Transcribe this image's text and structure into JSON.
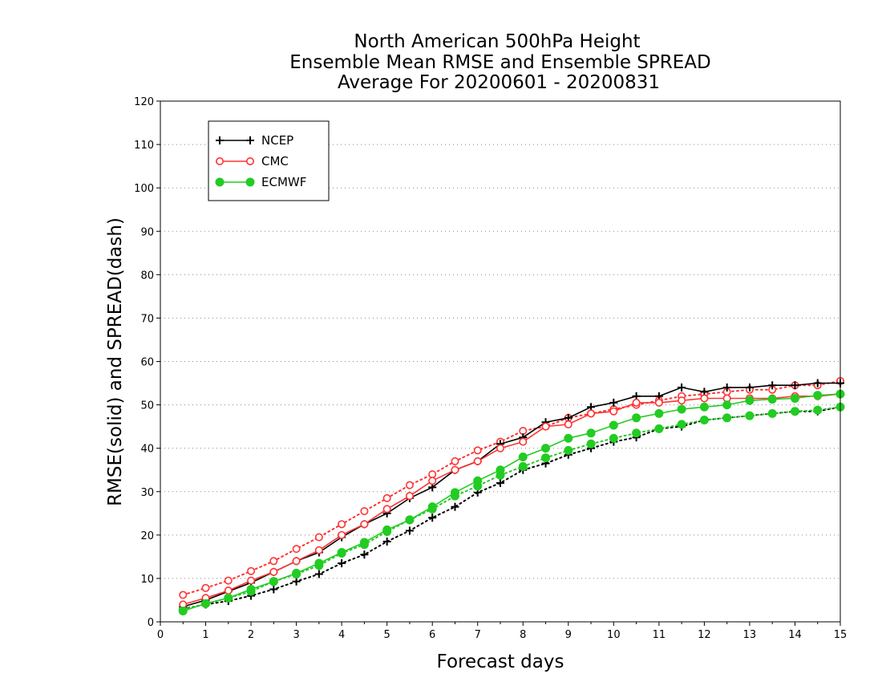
{
  "chart_data": {
    "type": "line",
    "title_lines": [
      "North American 500hPa Height",
      "Ensemble Mean RMSE and Ensemble SPREAD",
      "Average For 20200601 - 20200831"
    ],
    "xlabel": "Forecast days",
    "ylabel": "RMSE(solid) and SPREAD(dash)",
    "xlim": [
      0,
      15
    ],
    "ylim": [
      0,
      120
    ],
    "xticks": [
      "0",
      "1",
      "2",
      "3",
      "4",
      "5",
      "6",
      "7",
      "8",
      "9",
      "10",
      "11",
      "12",
      "13",
      "14",
      "15"
    ],
    "yticks": [
      "0",
      "10",
      "20",
      "30",
      "40",
      "50",
      "60",
      "70",
      "80",
      "90",
      "100",
      "110",
      "120"
    ],
    "grid": true,
    "legend_position": "top-left",
    "x": [
      0.5,
      1,
      1.5,
      2,
      2.5,
      3,
      3.5,
      4,
      4.5,
      5,
      5.5,
      6,
      6.5,
      7,
      7.5,
      8,
      8.5,
      9,
      9.5,
      10,
      10.5,
      11,
      11.5,
      12,
      12.5,
      13,
      13.5,
      14,
      14.5,
      15
    ],
    "series": [
      {
        "name": "NCEP",
        "color": "#000000",
        "marker": "plus",
        "rmse": [
          3.5,
          5.0,
          7.0,
          9.0,
          11.5,
          14.0,
          16.0,
          19.5,
          22.5,
          25.0,
          28.5,
          31.0,
          35.0,
          37.0,
          41.0,
          42.5,
          46.0,
          47.0,
          49.5,
          50.5,
          52.0,
          52.0,
          54.0,
          53.0,
          54.0,
          54.0,
          54.5,
          54.5,
          55.0,
          55.0
        ],
        "spread": [
          3.0,
          4.0,
          4.8,
          6.0,
          7.5,
          9.3,
          11.0,
          13.5,
          15.5,
          18.5,
          21.0,
          24.0,
          26.5,
          29.8,
          32.0,
          35.0,
          36.5,
          38.5,
          40.0,
          41.5,
          42.5,
          44.5,
          45.0,
          46.5,
          47.0,
          47.5,
          48.0,
          48.5,
          48.5,
          49.5
        ]
      },
      {
        "name": "CMC",
        "color": "#ff3333",
        "marker": "open-circle",
        "rmse": [
          4.0,
          5.5,
          7.2,
          9.5,
          11.5,
          14.0,
          16.5,
          20.0,
          22.5,
          26.0,
          29.0,
          32.5,
          35.0,
          37.0,
          40.0,
          41.5,
          45.0,
          45.5,
          48.0,
          48.5,
          50.5,
          50.5,
          51.0,
          51.5,
          51.5,
          51.5,
          51.5,
          52.0,
          52.0,
          52.5
        ],
        "spread": [
          6.2,
          7.8,
          9.5,
          11.7,
          14.0,
          16.8,
          19.5,
          22.5,
          25.5,
          28.5,
          31.5,
          34.0,
          37.0,
          39.5,
          41.5,
          44.0,
          45.0,
          47.0,
          48.0,
          49.0,
          50.0,
          51.0,
          52.0,
          52.5,
          53.0,
          53.5,
          53.5,
          54.5,
          54.5,
          55.5
        ]
      },
      {
        "name": "ECMWF",
        "color": "#22cc22",
        "marker": "filled-circle",
        "rmse": [
          2.5,
          4.2,
          5.5,
          7.5,
          9.3,
          11.2,
          13.5,
          16.0,
          18.3,
          21.2,
          23.5,
          26.5,
          29.8,
          32.5,
          35.0,
          38.0,
          40.0,
          42.3,
          43.5,
          45.3,
          47.0,
          48.0,
          49.0,
          49.5,
          50.0,
          51.0,
          51.3,
          51.5,
          52.2,
          52.5
        ],
        "spread": [
          2.8,
          4.2,
          5.5,
          7.0,
          9.3,
          11.0,
          13.0,
          15.8,
          17.8,
          20.8,
          23.5,
          26.0,
          29.0,
          31.3,
          33.8,
          35.8,
          37.8,
          39.5,
          41.0,
          42.3,
          43.5,
          44.5,
          45.5,
          46.5,
          47.0,
          47.5,
          48.0,
          48.5,
          48.8,
          49.5
        ]
      }
    ]
  }
}
